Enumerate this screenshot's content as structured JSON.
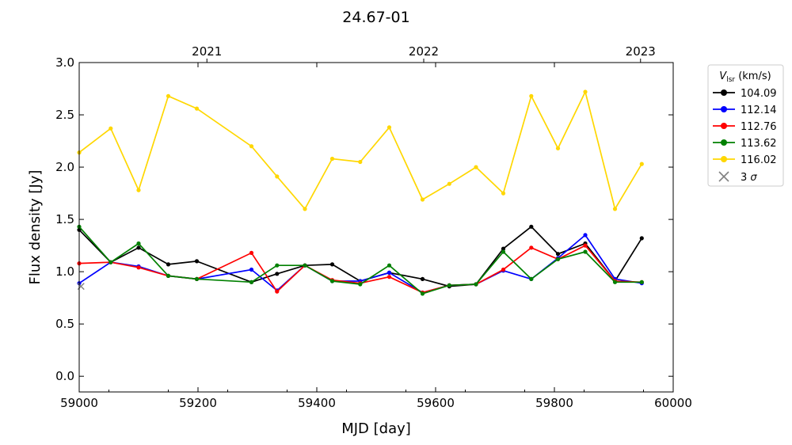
{
  "chart_data": {
    "type": "line",
    "title": "24.67-01",
    "xlabel": "MJD [day]",
    "ylabel": "Flux density [Jy]",
    "xlim": [
      59000,
      60000
    ],
    "ylim": [
      -0.15,
      3.0
    ],
    "x_ticks": [
      59000,
      59200,
      59400,
      59600,
      59800,
      60000
    ],
    "y_ticks": [
      0.0,
      0.5,
      1.0,
      1.5,
      2.0,
      2.5,
      3.0
    ],
    "y_tick_labels": [
      "0.0",
      "0.5",
      "1.0",
      "1.5",
      "2.0",
      "2.5",
      "3.0"
    ],
    "top_axis": {
      "ticks": [
        {
          "x": 59215,
          "label": "2021"
        },
        {
          "x": 59580,
          "label": "2022"
        },
        {
          "x": 59945,
          "label": "2023"
        }
      ]
    },
    "grid": false,
    "legend": {
      "title": "V_lsr (km/s)",
      "placement": "outside-right"
    },
    "x": [
      59000,
      59053,
      59100,
      59150,
      59198,
      59290,
      59333,
      59380,
      59426,
      59473,
      59522,
      59578,
      59623,
      59668,
      59714,
      59761,
      59806,
      59852,
      59902,
      59947
    ],
    "series": [
      {
        "name": "104.09",
        "color": "#000000",
        "values": [
          1.4,
          1.09,
          1.23,
          1.07,
          1.1,
          0.9,
          0.98,
          1.06,
          1.07,
          0.91,
          0.99,
          0.93,
          0.86,
          0.88,
          1.22,
          1.43,
          1.17,
          1.27,
          0.91,
          1.32
        ]
      },
      {
        "name": "112.14",
        "color": "#0000ff",
        "values": [
          0.89,
          1.09,
          1.05,
          0.96,
          0.93,
          1.02,
          0.82,
          1.06,
          0.91,
          0.91,
          0.99,
          0.8,
          0.87,
          0.88,
          1.01,
          0.93,
          1.13,
          1.35,
          0.93,
          0.89
        ]
      },
      {
        "name": "112.76",
        "color": "#ff0000",
        "values": [
          1.08,
          1.09,
          1.04,
          0.96,
          0.93,
          1.18,
          0.81,
          1.06,
          0.92,
          0.89,
          0.95,
          0.8,
          0.87,
          0.88,
          1.02,
          1.23,
          1.12,
          1.25,
          0.91,
          0.9
        ]
      },
      {
        "name": "113.62",
        "color": "#008000",
        "values": [
          1.43,
          1.09,
          1.27,
          0.96,
          0.93,
          0.9,
          1.06,
          1.06,
          0.91,
          0.88,
          1.06,
          0.79,
          0.87,
          0.88,
          1.19,
          0.93,
          1.12,
          1.19,
          0.9,
          0.9
        ]
      },
      {
        "name": "116.02",
        "color": "#ffd700",
        "values": [
          2.14,
          2.37,
          1.78,
          2.68,
          2.56,
          2.2,
          1.91,
          1.6,
          2.08,
          2.05,
          2.38,
          1.69,
          1.84,
          2.0,
          1.75,
          2.68,
          2.18,
          2.72,
          1.6,
          2.03
        ]
      }
    ],
    "upper_limits": {
      "name": "3 σ",
      "color": "#808080",
      "points": [
        {
          "x": 59003,
          "y": 0.86
        }
      ]
    }
  }
}
